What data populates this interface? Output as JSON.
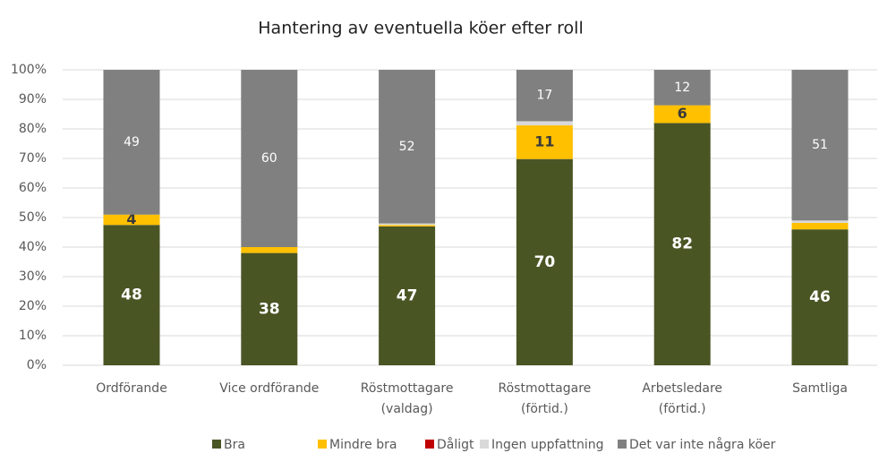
{
  "chart_data": {
    "type": "stacked_bar",
    "title": "Hantering av eventuella köer efter roll",
    "categories": [
      "Ordförande",
      "Vice ordförande",
      [
        "Röstmottagare",
        "(valdag)"
      ],
      [
        "Röstmottagare",
        "(förtid.)"
      ],
      [
        "Arbetsledare",
        "(förtid.)"
      ],
      "Samtliga"
    ],
    "series": [
      {
        "name": "Bra",
        "color": "#4a5524",
        "values": [
          47.5,
          38,
          47,
          69.8,
          82,
          46
        ],
        "value_labels": [
          "48",
          "38",
          "47",
          "70",
          "82",
          "46"
        ]
      },
      {
        "name": "Mindre bra",
        "color": "#ffc000",
        "values": [
          3.5,
          2,
          0.5,
          11.4,
          6,
          2.2
        ],
        "value_labels": [
          "4",
          null,
          null,
          "11",
          "6",
          null
        ]
      },
      {
        "name": "Dåligt",
        "color": "#c00000",
        "values": [
          0,
          0,
          0,
          0,
          0,
          0
        ],
        "value_labels": [
          null,
          null,
          null,
          null,
          null,
          null
        ]
      },
      {
        "name": "Ingen uppfattning",
        "color": "#d9d9d9",
        "values": [
          0,
          0,
          0.5,
          1.4,
          0,
          0.8
        ],
        "value_labels": [
          null,
          null,
          null,
          null,
          null,
          null
        ]
      },
      {
        "name": "Det var inte några köer",
        "color": "#808080",
        "values": [
          49,
          60,
          52,
          17.4,
          12,
          51
        ],
        "value_labels": [
          "49",
          "60",
          "52",
          "17",
          "12",
          "51"
        ]
      }
    ],
    "ylim": [
      0,
      100
    ],
    "yticks": [
      {
        "value": 0,
        "label": "0%"
      },
      {
        "value": 10,
        "label": "10%"
      },
      {
        "value": 20,
        "label": "20%"
      },
      {
        "value": 30,
        "label": "30%"
      },
      {
        "value": 40,
        "label": "40%"
      },
      {
        "value": 50,
        "label": "50%"
      },
      {
        "value": 60,
        "label": "60%"
      },
      {
        "value": 70,
        "label": "70%"
      },
      {
        "value": 80,
        "label": "80%"
      },
      {
        "value": 90,
        "label": "90%"
      },
      {
        "value": 100,
        "label": "100%"
      }
    ],
    "grid": true,
    "legend": "bottom"
  }
}
